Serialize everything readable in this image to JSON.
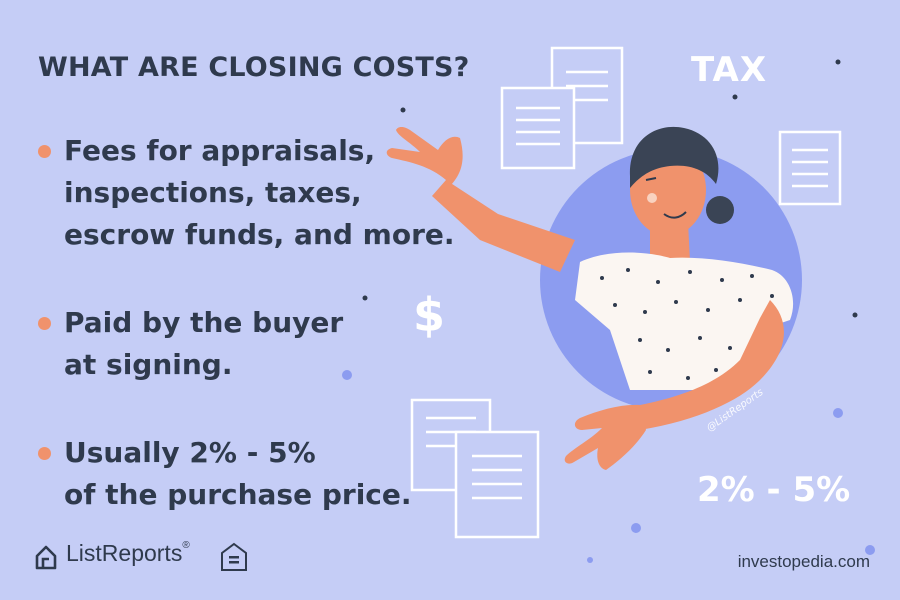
{
  "title": "WHAT ARE CLOSING COSTS?",
  "bullets": [
    {
      "lines": [
        "Fees for appraisals,",
        "inspections, taxes,",
        "escrow funds, and more."
      ]
    },
    {
      "lines": [
        "Paid by the buyer",
        "at signing."
      ]
    },
    {
      "lines": [
        "Usually 2% - 5%",
        "of the purchase price."
      ]
    }
  ],
  "illustration": {
    "tax_label": "TAX",
    "percent_label": "2% - 5%",
    "dollar_label": "$",
    "watermark": "@ListReports"
  },
  "footer": {
    "brand": "ListReports",
    "brand_mark": "®",
    "equal_housing_icon": "equal-housing-opportunity-icon",
    "site": "investopedia.com"
  },
  "colors": {
    "background": "#c5cdf6",
    "text": "#2f3a4d",
    "bullet": "#f0926c",
    "circle": "#8c9cf0",
    "skin": "#f0926c",
    "hair": "#3a4455"
  }
}
